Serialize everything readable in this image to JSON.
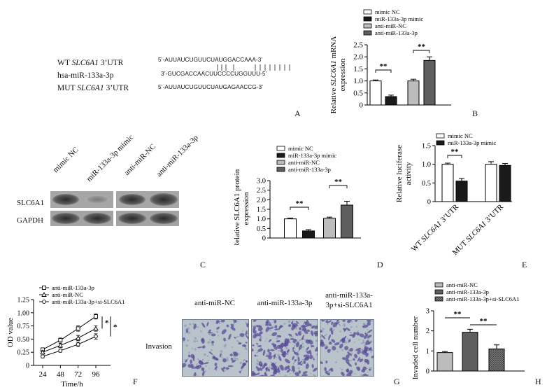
{
  "panels": {
    "A": "A",
    "B": "B",
    "C": "C",
    "D": "D",
    "E": "E",
    "F": "F",
    "G": "G",
    "H": "H"
  },
  "panelA": {
    "rows": [
      {
        "prefix": "WT ",
        "gene": "SLC6A1",
        "suffix": " 3’UTR",
        "seq": "5’-AUUAUCUGUUCUAUGGACCAAA-3’"
      },
      {
        "prefix": "hsa-miR-133a-3p",
        "gene": "",
        "suffix": "",
        "seq": "3’-GUCGACCAACUUCCCCUGGUUU-5’"
      },
      {
        "prefix": "MUT ",
        "gene": "SLC6A1",
        "suffix": " 3’UTR",
        "seq": "5’-AUUAUCUGUUCUAUGAGAACCG-3’"
      }
    ]
  },
  "legend4": [
    "mimic NC",
    "miR-133a-3p mimic",
    "anti-miR-NC",
    "anti-miR-133a-3p"
  ],
  "legend2": [
    "mimic NC",
    "miR-133a-3p mimic"
  ],
  "legend3": [
    "anti-miR-NC",
    "anti-miR-133a-3p",
    "anti-miR-133a-3p+si-SLC6A1"
  ],
  "sig": "**",
  "sig1": "*",
  "colors": {
    "white": "#ffffff",
    "black": "#1a1a1a",
    "lightgray": "#bcbcbc",
    "darkgray": "#5e5e5e"
  },
  "panelC": {
    "columns": [
      "mimic NC",
      "miR-133a-3p mimic",
      "anti-miR-NC",
      "anti-miR-133a-3p"
    ],
    "rows": [
      "SLC6A1",
      "GAPDH"
    ]
  },
  "panelG": {
    "columns": [
      "anti-miR-NC",
      "anti-miR-133a-3p",
      "anti-miR-133a-3p+si-SLC6A1"
    ],
    "row_label": "Invasion"
  },
  "chart_data": [
    {
      "id": "B",
      "type": "bar",
      "ylabel": "Relative SLC6A1 mRNA expression",
      "ylabel_prefix": "Relative ",
      "ylabel_gene": "SLC6A1",
      "ylabel_suffix": " mRNA",
      "ylabel_line2": "expression",
      "ylim": [
        0,
        2.5
      ],
      "yticks": [
        0,
        0.5,
        1.0,
        1.5,
        2.0,
        2.5
      ],
      "yticklabels": [
        "0",
        "0.5",
        "1.0",
        "1.5",
        "2.0",
        "2.5"
      ],
      "categories": [
        "mimic NC",
        "miR-133a-3p mimic",
        "anti-miR-NC",
        "anti-miR-133a-3p"
      ],
      "values": [
        1.0,
        0.35,
        1.0,
        1.85
      ],
      "errors": [
        0.04,
        0.06,
        0.07,
        0.15
      ],
      "fills": [
        "white",
        "black",
        "lightgray",
        "darkgray"
      ],
      "legend": "top"
    },
    {
      "id": "D",
      "type": "bar",
      "ylabel": "Relative SLC6A1 protein expression",
      "ylabel_line1": "Relative SLC6A1 protein",
      "ylabel_line2": "expression",
      "ylim": [
        0,
        3.0
      ],
      "yticks": [
        0,
        0.5,
        1.0,
        1.5,
        2.0,
        2.5,
        3.0
      ],
      "yticklabels": [
        "0",
        "0.5",
        "1.0",
        "1.5",
        "2.0",
        "2.5",
        "3.0"
      ],
      "categories": [
        "mimic NC",
        "miR-133a-3p mimic",
        "anti-miR-NC",
        "anti-miR-133a-3p"
      ],
      "values": [
        1.0,
        0.37,
        1.03,
        1.72
      ],
      "errors": [
        0.04,
        0.07,
        0.06,
        0.2
      ],
      "fills": [
        "white",
        "black",
        "lightgray",
        "darkgray"
      ],
      "legend": "top"
    },
    {
      "id": "E",
      "type": "bar",
      "ylabel": "Relative luciferase activity",
      "ylabel_line1": "Relative luciferase",
      "ylabel_line2": "activity",
      "ylim": [
        0,
        1.5
      ],
      "yticks": [
        0,
        0.5,
        1.0,
        1.5
      ],
      "yticklabels": [
        "0",
        "0.5",
        "1.0",
        "1.5"
      ],
      "groups": [
        {
          "prefix": "WT ",
          "gene": "SLC6A1",
          "suffix": " 3’UTR"
        },
        {
          "prefix": "MUT ",
          "gene": "SLC6A1",
          "suffix": " 3’UTR"
        }
      ],
      "series": [
        {
          "name": "mimic NC",
          "values": [
            1.0,
            1.0
          ],
          "errors": [
            0.03,
            0.07
          ],
          "fill": "white"
        },
        {
          "name": "miR-133a-3p mimic",
          "values": [
            0.55,
            0.97
          ],
          "errors": [
            0.07,
            0.05
          ],
          "fill": "black"
        }
      ],
      "legend": "top"
    },
    {
      "id": "F",
      "type": "line",
      "ylabel": "OD value",
      "xlabel": "Time/h",
      "x": [
        24,
        48,
        72,
        96
      ],
      "xticklabels": [
        "24",
        "48",
        "72",
        "96"
      ],
      "ylim": [
        0,
        1.25
      ],
      "yticks": [
        0,
        0.25,
        0.5,
        0.75,
        1.0,
        1.25
      ],
      "yticklabels": [
        "0",
        "0.25",
        "0.50",
        "0.75",
        "1.00",
        "1.25"
      ],
      "series": [
        {
          "name": "anti-miR-133a-3p",
          "values": [
            0.3,
            0.48,
            0.7,
            0.93
          ],
          "errors": [
            0.03,
            0.04,
            0.05,
            0.05
          ],
          "marker": "square"
        },
        {
          "name": "anti-miR-NC",
          "values": [
            0.25,
            0.38,
            0.52,
            0.7
          ],
          "errors": [
            0.03,
            0.04,
            0.05,
            0.05
          ],
          "marker": "triangle"
        },
        {
          "name": "anti-miR-133a-3p+si-SLC6A1",
          "values": [
            0.17,
            0.28,
            0.4,
            0.55
          ],
          "errors": [
            0.03,
            0.03,
            0.04,
            0.05
          ],
          "marker": "circle"
        }
      ],
      "legend": "top-left"
    },
    {
      "id": "H",
      "type": "bar",
      "ylabel": "Invaded cell number",
      "ylim": [
        0,
        3
      ],
      "yticks": [
        0,
        1,
        2,
        3
      ],
      "yticklabels": [
        "0",
        "1",
        "2",
        "3"
      ],
      "categories": [
        "anti-miR-NC",
        "anti-miR-133a-3p",
        "anti-miR-133a-3p+si-SLC6A1"
      ],
      "values": [
        0.92,
        1.93,
        1.1
      ],
      "errors": [
        0.05,
        0.15,
        0.2
      ],
      "fills": [
        "lightgray",
        "darkgray",
        "hatch"
      ],
      "legend": "top"
    }
  ]
}
